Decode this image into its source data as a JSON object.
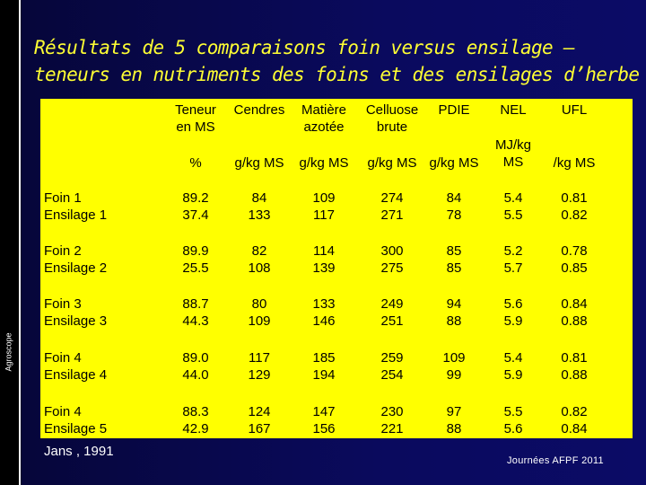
{
  "slide": {
    "title_line1": "Résultats de 5 comparaisons foin versus ensilage –",
    "title_line2": "teneurs en nutriments des foins et des ensilages d’herbe",
    "side_logo": "Agroscope",
    "source": "Jans , 1991",
    "footer": "Journées AFPF 2011",
    "colors": {
      "background": "#0a0a5e",
      "title": "#ffff33",
      "table": "#ffff00"
    }
  },
  "table": {
    "headers": [
      {
        "name": "Teneur\nen MS",
        "unit": "%"
      },
      {
        "name": "Cendres",
        "unit": "g/kg MS"
      },
      {
        "name": "Matière\nazotée",
        "unit": "g/kg MS"
      },
      {
        "name": "Celluose\nbrute",
        "unit": "g/kg MS"
      },
      {
        "name": "PDIE",
        "unit": "g/kg MS"
      },
      {
        "name": "NEL",
        "unit": "MJ/kg\nMS"
      },
      {
        "name": "UFL",
        "unit": "/kg MS"
      }
    ],
    "rows": [
      {
        "label": "Foin 1\nEnsilage 1",
        "values": [
          "89.2\n37.4",
          "84\n133",
          "109\n117",
          "274\n271",
          "84\n78",
          "5.4\n5.5",
          "0.81\n0.82"
        ]
      },
      {
        "label": "Foin 2\nEnsilage 2",
        "values": [
          "89.9\n25.5",
          "82\n108",
          "114\n139",
          "300\n275",
          "85\n85",
          "5.2\n5.7",
          "0.78\n0.85"
        ]
      },
      {
        "label": "Foin 3\nEnsilage 3",
        "values": [
          "88.7\n44.3",
          "80\n109",
          "133\n146",
          "249\n251",
          "94\n88",
          "5.6\n5.9",
          "0.84\n0.88"
        ]
      },
      {
        "label": "Foin 4\nEnsilage 4",
        "values": [
          "89.0\n44.0",
          "117\n129",
          "185\n194",
          "259\n254",
          "109\n99",
          "5.4\n5.9",
          "0.81\n0.88"
        ]
      },
      {
        "label": "Foin 4\nEnsilage 5",
        "values": [
          "88.3\n42.9",
          "124\n167",
          "147\n156",
          "230\n221",
          "97\n88",
          "5.5\n5.6",
          "0.82\n0.84"
        ]
      }
    ]
  }
}
